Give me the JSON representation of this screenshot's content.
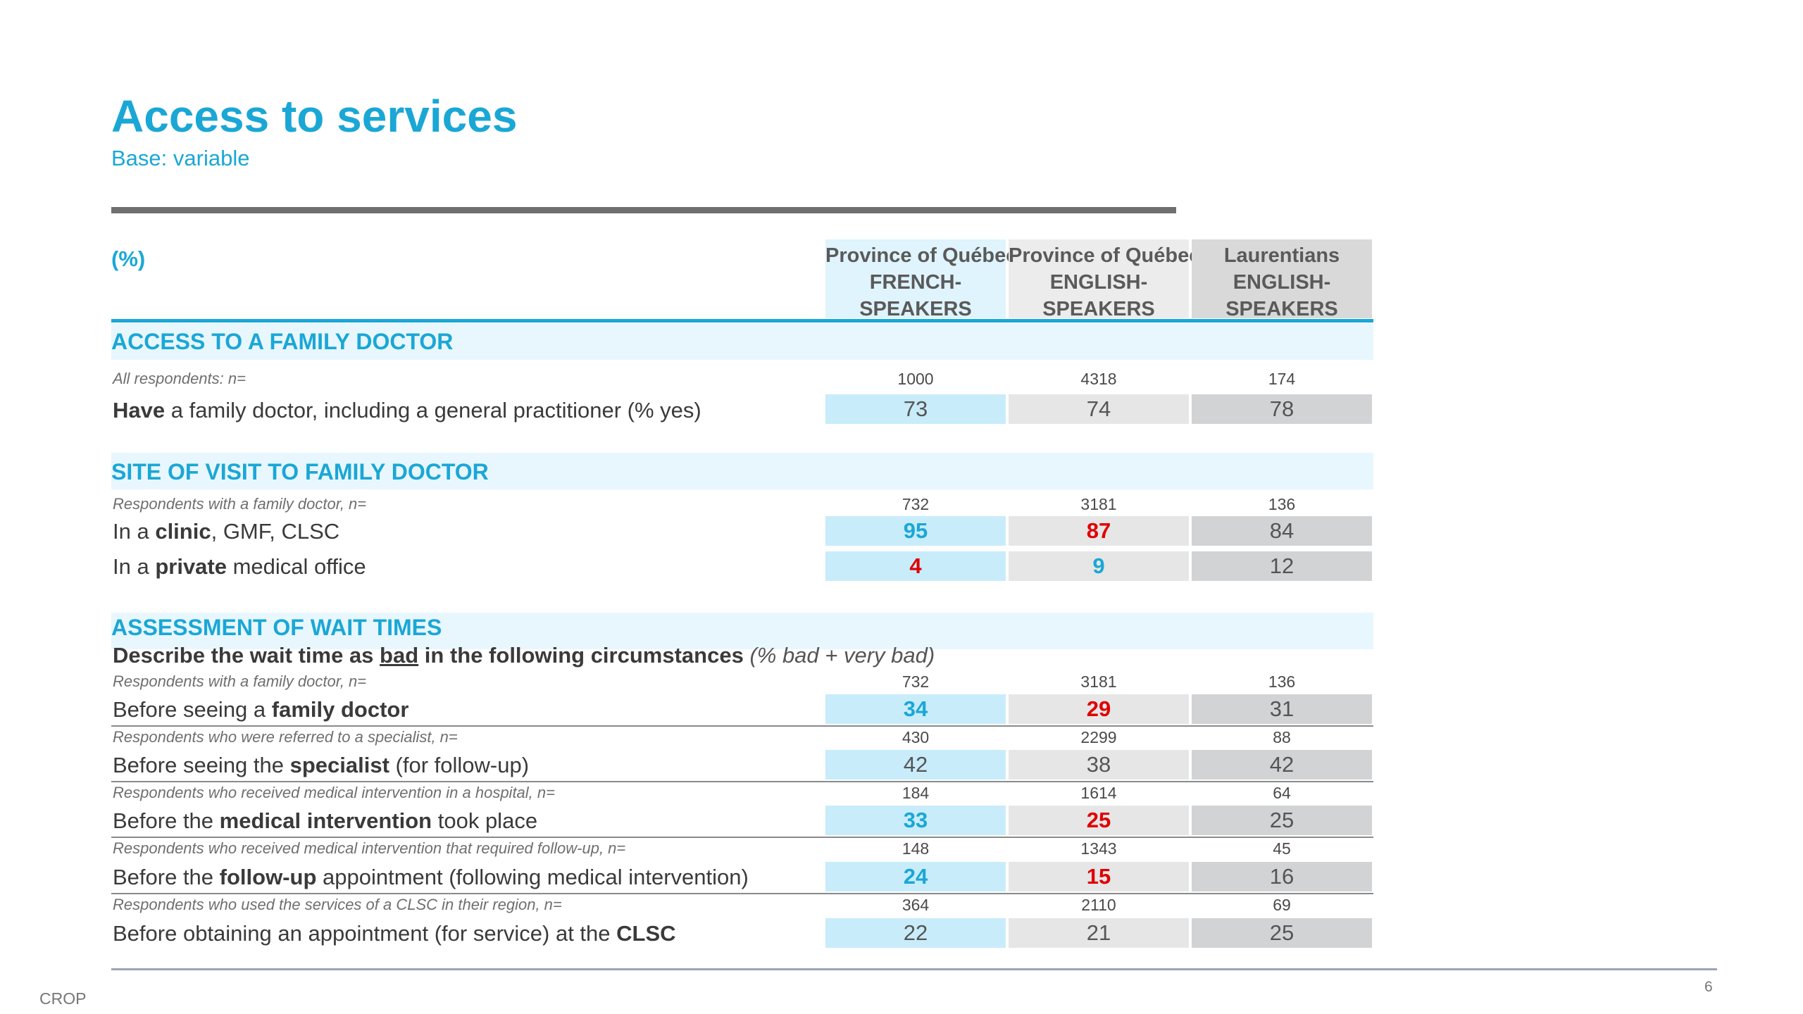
{
  "title": "Access to services",
  "subtitle": "Base: variable",
  "unit_label": "(%)",
  "columns": [
    {
      "line1": "Province of Québec",
      "line2": "FRENCH-",
      "line3": "SPEAKERS"
    },
    {
      "line1": "Province of Québec",
      "line2": "ENGLISH-",
      "line3": "SPEAKERS"
    },
    {
      "line1": "Laurentians",
      "line2": "ENGLISH-",
      "line3": "SPEAKERS"
    }
  ],
  "sections": {
    "family_doctor": {
      "title": "ACCESS TO A FAMILY DOCTOR",
      "base": {
        "label": "All respondents: n=",
        "n": [
          "1000",
          "4318",
          "174"
        ]
      },
      "row": {
        "bold": "Have",
        "rest": " a family doctor, including a general practitioner (% yes)",
        "values": [
          "73",
          "74",
          "78"
        ]
      }
    },
    "site": {
      "title": "SITE OF VISIT TO FAMILY DOCTOR",
      "base": {
        "label": "Respondents with a family doctor, n=",
        "n": [
          "732",
          "3181",
          "136"
        ]
      },
      "rows": [
        {
          "pre": "In a ",
          "bold": "clinic",
          "post": ", GMF, CLSC",
          "values": [
            "95",
            "87",
            "84"
          ]
        },
        {
          "pre": "In a ",
          "bold": "private",
          "post": " medical office",
          "values": [
            "4",
            "9",
            "12"
          ]
        }
      ]
    },
    "wait": {
      "title": "ASSESSMENT OF WAIT TIMES",
      "subheading": {
        "pre": "Describe the wait time as ",
        "underlined": "bad",
        "post": " in the following circumstances ",
        "note": "(% bad + very bad)"
      },
      "rows": [
        {
          "base": "Respondents with a family doctor, n=",
          "n": [
            "732",
            "3181",
            "136"
          ],
          "pre": "Before seeing a ",
          "bold": "family doctor",
          "post": "",
          "values": [
            "34",
            "29",
            "31"
          ]
        },
        {
          "base": "Respondents who were referred to a specialist, n=",
          "n": [
            "430",
            "2299",
            "88"
          ],
          "pre": "Before seeing the ",
          "bold": "specialist",
          "post": " (for follow-up)",
          "values": [
            "42",
            "38",
            "42"
          ]
        },
        {
          "base": "Respondents who received medical intervention in a hospital, n=",
          "n": [
            "184",
            "1614",
            "64"
          ],
          "pre": "Before the ",
          "bold": "medical intervention",
          "post": " took place",
          "values": [
            "33",
            "25",
            "25"
          ]
        },
        {
          "base": "Respondents who received medical intervention that required follow-up, n=",
          "n": [
            "148",
            "1343",
            "45"
          ],
          "pre": "Before the ",
          "bold": "follow-up",
          "post": " appointment (following medical intervention)",
          "values": [
            "24",
            "15",
            "16"
          ]
        },
        {
          "base": "Respondents who used the services of a CLSC in their region, n=",
          "n": [
            "364",
            "2110",
            "69"
          ],
          "pre": "Before obtaining an appointment (for service) at the ",
          "bold": "CLSC",
          "post": "",
          "values": [
            "22",
            "21",
            "25"
          ]
        }
      ]
    }
  },
  "highlight_colors": {
    "higher": "#1aa7d6",
    "lower": "#e00000"
  },
  "footer": {
    "brand": "CROP",
    "page": "6"
  }
}
